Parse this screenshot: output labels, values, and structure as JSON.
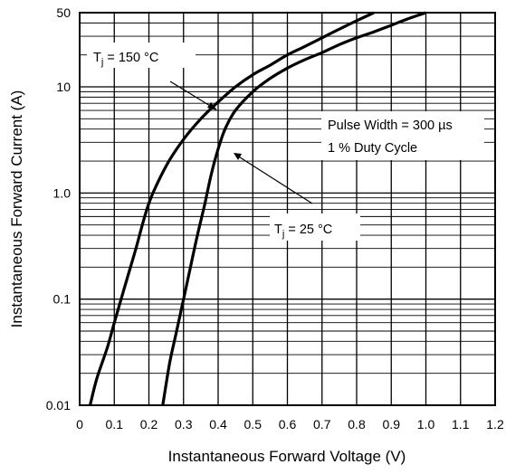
{
  "chart_data": {
    "type": "line",
    "title": "",
    "xlabel": "Instantaneous Forward Voltage (V)",
    "ylabel": "Instantaneous Forward Current (A)",
    "xlim": [
      0,
      1.2
    ],
    "ylim": [
      0.01,
      50
    ],
    "yscale": "log",
    "grid": true,
    "x_ticks": [
      "0",
      "0.1",
      "0.2",
      "0.3",
      "0.4",
      "0.5",
      "0.6",
      "0.7",
      "0.8",
      "0.9",
      "1.0",
      "1.1",
      "1.2"
    ],
    "x_tick_values": [
      0,
      0.1,
      0.2,
      0.3,
      0.4,
      0.5,
      0.6,
      0.7,
      0.8,
      0.9,
      1.0,
      1.1,
      1.2
    ],
    "y_ticks": [
      "0.01",
      "0.1",
      "1.0",
      "10",
      "50"
    ],
    "y_tick_values": [
      0.01,
      0.1,
      1.0,
      10,
      50
    ],
    "series": [
      {
        "name": "Tj = 150 °C",
        "label_main": "T",
        "label_sub": "j",
        "label_rest": " = 150 °C",
        "points": [
          [
            0.03,
            0.01
          ],
          [
            0.05,
            0.018
          ],
          [
            0.08,
            0.035
          ],
          [
            0.1,
            0.06
          ],
          [
            0.13,
            0.13
          ],
          [
            0.16,
            0.28
          ],
          [
            0.2,
            0.8
          ],
          [
            0.25,
            1.8
          ],
          [
            0.3,
            3.2
          ],
          [
            0.35,
            5.0
          ],
          [
            0.4,
            7.2
          ],
          [
            0.45,
            10
          ],
          [
            0.5,
            13
          ],
          [
            0.55,
            16
          ],
          [
            0.6,
            20
          ],
          [
            0.65,
            24
          ],
          [
            0.7,
            29
          ],
          [
            0.75,
            35
          ],
          [
            0.8,
            42
          ],
          [
            0.85,
            50
          ]
        ]
      },
      {
        "name": "Tj = 25 °C",
        "label_main": "T",
        "label_sub": "j",
        "label_rest": " = 25 °C",
        "points": [
          [
            0.24,
            0.01
          ],
          [
            0.26,
            0.025
          ],
          [
            0.28,
            0.05
          ],
          [
            0.3,
            0.1
          ],
          [
            0.32,
            0.2
          ],
          [
            0.34,
            0.4
          ],
          [
            0.36,
            0.75
          ],
          [
            0.38,
            1.5
          ],
          [
            0.4,
            2.6
          ],
          [
            0.42,
            4.0
          ],
          [
            0.45,
            6.0
          ],
          [
            0.5,
            9.0
          ],
          [
            0.55,
            12
          ],
          [
            0.6,
            15
          ],
          [
            0.65,
            18
          ],
          [
            0.7,
            21
          ],
          [
            0.75,
            25
          ],
          [
            0.8,
            29
          ],
          [
            0.85,
            33
          ],
          [
            0.9,
            38
          ],
          [
            0.95,
            44
          ],
          [
            1.0,
            50
          ]
        ]
      }
    ],
    "annotations": [
      {
        "line1": "Pulse Width = 300 µs",
        "line2": "1 % Duty Cycle"
      }
    ]
  }
}
